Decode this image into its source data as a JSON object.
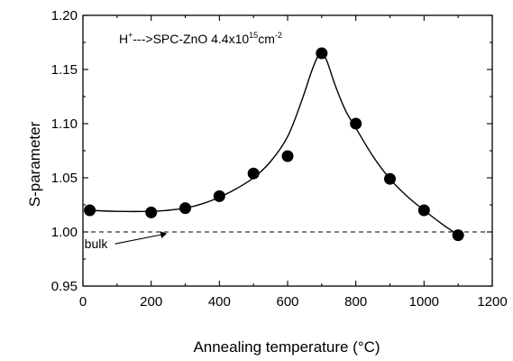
{
  "chart_data": {
    "type": "scatter",
    "title": "",
    "xlabel": "Annealing temperature (°C)",
    "ylabel": "S-parameter",
    "xlim": [
      0,
      1200
    ],
    "ylim": [
      0.95,
      1.2
    ],
    "xticks": [
      0,
      200,
      400,
      600,
      800,
      1000,
      1200
    ],
    "yticks": [
      0.95,
      1.0,
      1.05,
      1.1,
      1.15,
      1.2
    ],
    "grid": false,
    "series": [
      {
        "type": "scatter",
        "marker": "filled-circle",
        "color": "#000000",
        "x": [
          20,
          200,
          300,
          400,
          500,
          600,
          700,
          800,
          900,
          1000,
          1100
        ],
        "y": [
          1.02,
          1.018,
          1.022,
          1.033,
          1.054,
          1.07,
          1.165,
          1.1,
          1.049,
          1.02,
          0.997
        ]
      },
      {
        "type": "line",
        "style": "solid",
        "color": "#000000",
        "x": [
          20,
          100,
          200,
          250,
          300,
          350,
          400,
          450,
          500,
          550,
          600,
          640,
          670,
          690,
          700,
          715,
          740,
          770,
          800,
          850,
          900,
          950,
          1000,
          1050,
          1100
        ],
        "y": [
          1.02,
          1.019,
          1.019,
          1.02,
          1.022,
          1.026,
          1.032,
          1.04,
          1.05,
          1.065,
          1.088,
          1.12,
          1.148,
          1.163,
          1.165,
          1.158,
          1.135,
          1.112,
          1.096,
          1.07,
          1.049,
          1.033,
          1.02,
          1.008,
          0.997
        ]
      }
    ],
    "reference_line": {
      "y": 1.0,
      "style": "dashed",
      "label": "bulk",
      "label_x": 200,
      "label_y": 0.989,
      "arrow_to_x": 270
    },
    "annotation": {
      "prefix": "H",
      "prefix_sup": "+",
      "arrow": "--->",
      "material": "SPC-ZnO 4.4x10",
      "exp": "15",
      "unit": "cm",
      "unit_exp": "-2"
    }
  }
}
